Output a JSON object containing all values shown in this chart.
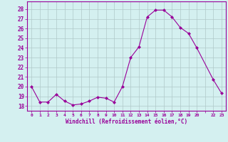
{
  "x": [
    0,
    1,
    2,
    3,
    4,
    5,
    6,
    7,
    8,
    9,
    10,
    11,
    12,
    13,
    14,
    15,
    16,
    17,
    18,
    19,
    20,
    22,
    23
  ],
  "y": [
    20.0,
    18.4,
    18.4,
    19.2,
    18.5,
    18.1,
    18.2,
    18.5,
    18.9,
    18.8,
    18.4,
    20.0,
    23.0,
    24.1,
    27.2,
    27.9,
    27.9,
    27.2,
    26.1,
    25.5,
    24.0,
    20.7,
    19.3
  ],
  "line_color": "#990099",
  "marker_color": "#990099",
  "bg_color": "#d4f0f0",
  "grid_color": "#b0c8c8",
  "xlabel": "Windchill (Refroidissement éolien,°C)",
  "yticks": [
    18,
    19,
    20,
    21,
    22,
    23,
    24,
    25,
    26,
    27,
    28
  ],
  "ylim": [
    17.5,
    28.8
  ],
  "xlim": [
    -0.5,
    23.5
  ],
  "axis_color": "#990099",
  "tick_color": "#990099",
  "label_color": "#990099"
}
